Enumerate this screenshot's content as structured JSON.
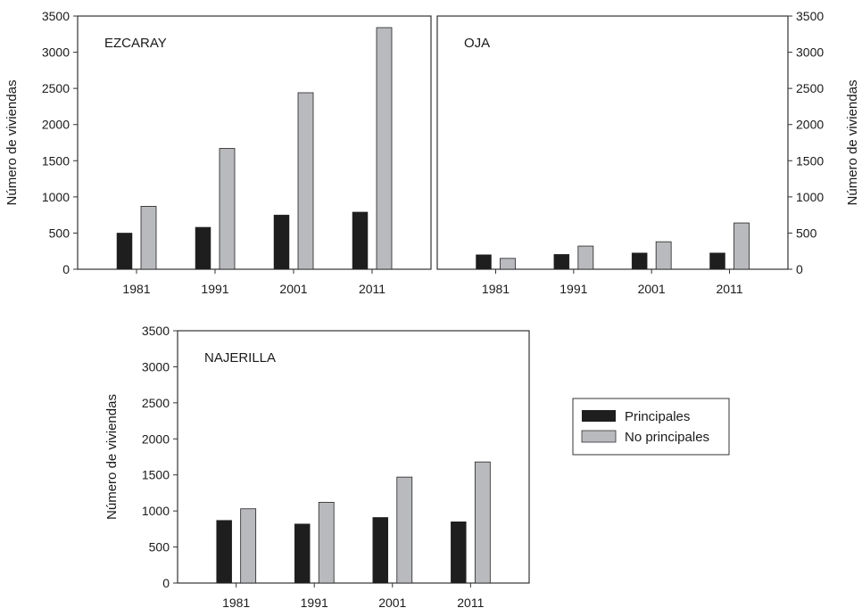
{
  "colors": {
    "principales": "#1e1e1e",
    "no_principales": "#b9babd",
    "axis": "#333333"
  },
  "legend": {
    "placement": "bottom-right",
    "entries": [
      {
        "label": "Principales",
        "color_key": "principales"
      },
      {
        "label": "No principales",
        "color_key": "no_principales"
      }
    ]
  },
  "chart_data": [
    {
      "type": "bar",
      "title": "EZCARAY",
      "categories": [
        "1981",
        "1991",
        "2001",
        "2011"
      ],
      "series": [
        {
          "name": "Principales",
          "values": [
            500,
            580,
            750,
            790
          ]
        },
        {
          "name": "No principales",
          "values": [
            870,
            1670,
            2440,
            3340
          ]
        }
      ],
      "ylabel": "Número de viviendas",
      "ylabel_side": "left",
      "ylim": [
        0,
        3500
      ],
      "yticks": [
        0,
        500,
        1000,
        1500,
        2000,
        2500,
        3000,
        3500
      ],
      "ytick_labels": [
        "0",
        "500",
        "1000",
        "1500",
        "2000",
        "2500",
        "3000",
        "3500"
      ],
      "grid": false
    },
    {
      "type": "bar",
      "title": "OJA",
      "categories": [
        "1981",
        "1991",
        "2001",
        "2011"
      ],
      "series": [
        {
          "name": "Principales",
          "values": [
            200,
            205,
            225,
            225
          ]
        },
        {
          "name": "No principales",
          "values": [
            150,
            320,
            380,
            640
          ]
        }
      ],
      "ylabel": "Número de viviendas",
      "ylabel_side": "right",
      "ylim": [
        0,
        3500
      ],
      "yticks": [
        0,
        500,
        1000,
        1500,
        2000,
        2500,
        3000,
        3500
      ],
      "ytick_labels": [
        "0",
        "500",
        "1000",
        "1500",
        "2000",
        "2500",
        "3000",
        "3500"
      ],
      "grid": false
    },
    {
      "type": "bar",
      "title": "NAJERILLA",
      "categories": [
        "1981",
        "1991",
        "2001",
        "2011"
      ],
      "series": [
        {
          "name": "Principales",
          "values": [
            870,
            820,
            910,
            850
          ]
        },
        {
          "name": "No principales",
          "values": [
            1030,
            1120,
            1470,
            1680
          ]
        }
      ],
      "ylabel": "Número de viviendas",
      "ylabel_side": "left",
      "ylim": [
        0,
        3500
      ],
      "yticks": [
        0,
        500,
        1000,
        1500,
        2000,
        2500,
        3000,
        3500
      ],
      "ytick_labels": [
        "0",
        "500",
        "1000",
        "1500",
        "2000",
        "2500",
        "3000",
        "3500"
      ],
      "grid": false
    }
  ]
}
